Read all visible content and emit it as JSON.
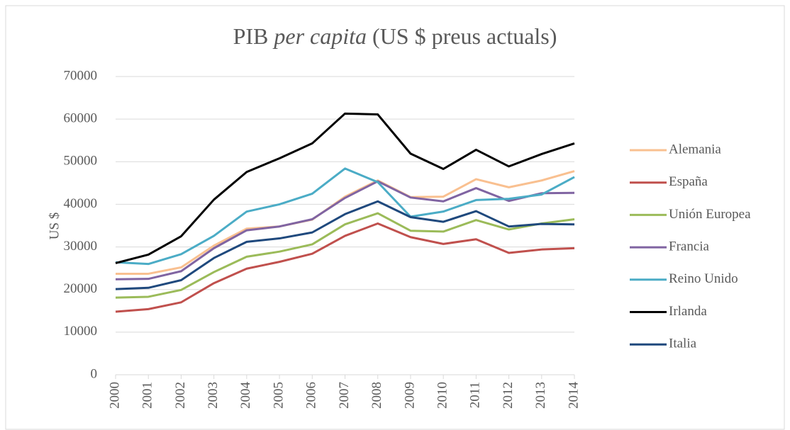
{
  "chart_data": {
    "type": "line",
    "title": [
      "PIB",
      "per capita",
      "(US $ preus actuals)"
    ],
    "y_label": "US $",
    "categories": [
      "2000",
      "2001",
      "2002",
      "2003",
      "2004",
      "2005",
      "2006",
      "2007",
      "2008",
      "2009",
      "2010",
      "2011",
      "2012",
      "2013",
      "2014"
    ],
    "series": [
      {
        "name": "Alemania",
        "color": "#f9c090",
        "values": [
          23700,
          23700,
          25200,
          30300,
          34300,
          34800,
          36400,
          41800,
          45600,
          41700,
          41800,
          45900,
          44000,
          45600,
          47800
        ]
      },
      {
        "name": "España",
        "color": "#c0504d",
        "values": [
          14800,
          15400,
          17000,
          21500,
          24900,
          26500,
          28400,
          32600,
          35500,
          32300,
          30700,
          31800,
          28600,
          29400,
          29700
        ]
      },
      {
        "name": "Unión Europea",
        "color": "#9bbb59",
        "values": [
          18100,
          18300,
          19900,
          24100,
          27700,
          28900,
          30600,
          35300,
          37900,
          33800,
          33600,
          36300,
          34100,
          35500,
          36500
        ]
      },
      {
        "name": "Francia",
        "color": "#8064a2",
        "values": [
          22400,
          22500,
          24300,
          29700,
          33900,
          34800,
          36500,
          41500,
          45400,
          41600,
          40700,
          43800,
          40800,
          42600,
          42700
        ]
      },
      {
        "name": "Reino Unido",
        "color": "#4bacc6",
        "values": [
          26400,
          26000,
          28300,
          32600,
          38300,
          40000,
          42500,
          48400,
          45200,
          37100,
          38300,
          41000,
          41300,
          42300,
          46400
        ]
      },
      {
        "name": "Irlanda",
        "color": "#000000",
        "values": [
          26200,
          28200,
          32500,
          41100,
          47600,
          50800,
          54300,
          61300,
          61100,
          51900,
          48300,
          52800,
          48900,
          51800,
          54300
        ]
      },
      {
        "name": "Italia",
        "color": "#1f497d",
        "values": [
          20100,
          20400,
          22200,
          27400,
          31200,
          32000,
          33400,
          37700,
          40700,
          37000,
          35900,
          38400,
          34800,
          35400,
          35300
        ]
      }
    ],
    "ylim": [
      0,
      70000
    ],
    "yticks": [
      0,
      10000,
      20000,
      30000,
      40000,
      50000,
      60000,
      70000
    ],
    "grid": true,
    "legend": "right"
  }
}
